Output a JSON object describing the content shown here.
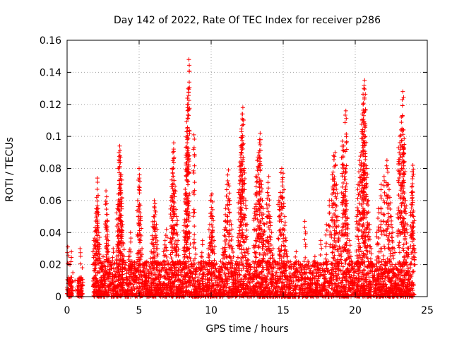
{
  "chart_data": {
    "type": "scatter",
    "title": "Day 142 of 2022, Rate Of TEC Index for receiver p286",
    "xlabel": "GPS time / hours",
    "ylabel": "ROTI / TECUs",
    "xlim": [
      0,
      25
    ],
    "ylim": [
      0,
      0.16
    ],
    "xticks": [
      0,
      5,
      10,
      15,
      20,
      25
    ],
    "yticks": [
      0,
      0.02,
      0.04,
      0.06,
      0.08,
      0.1,
      0.12,
      0.14,
      0.16
    ],
    "xtick_labels": [
      "0",
      "5",
      "10",
      "15",
      "20",
      "25"
    ],
    "ytick_labels": [
      "0",
      "0.02",
      "0.04",
      "0.06",
      "0.08",
      "0.1",
      "0.12",
      "0.14",
      "0.16"
    ],
    "grid": true,
    "marker": "+",
    "color": "#ff0000",
    "series": [
      {
        "points": [
          [
            0.05,
            0.031
          ],
          [
            0.1,
            0.012
          ],
          [
            0.15,
            0.008
          ],
          [
            0.2,
            0.02
          ],
          [
            0.25,
            0.005
          ],
          [
            0.3,
            0.028
          ],
          [
            0.35,
            0.009
          ],
          [
            0.4,
            0.015
          ],
          [
            0.55,
            0.01
          ],
          [
            0.6,
            0.004
          ],
          [
            0.8,
            0.007
          ],
          [
            0.9,
            0.03
          ],
          [
            0.95,
            0.012
          ],
          [
            1.0,
            0.005
          ],
          [
            1.05,
            0.018
          ],
          [
            1.1,
            0.009
          ],
          [
            1.8,
            0.028
          ],
          [
            1.85,
            0.035
          ],
          [
            1.9,
            0.02
          ],
          [
            1.95,
            0.043
          ],
          [
            2.0,
            0.052
          ],
          [
            2.05,
            0.062
          ],
          [
            2.1,
            0.074
          ],
          [
            2.15,
            0.055
          ],
          [
            2.2,
            0.04
          ],
          [
            2.25,
            0.03
          ],
          [
            2.3,
            0.018
          ],
          [
            2.35,
            0.012
          ],
          [
            2.4,
            0.008
          ],
          [
            2.45,
            0.004
          ],
          [
            2.5,
            0.025
          ],
          [
            2.6,
            0.015
          ],
          [
            2.7,
            0.066
          ],
          [
            2.75,
            0.058
          ],
          [
            2.8,
            0.047
          ],
          [
            2.85,
            0.035
          ],
          [
            2.9,
            0.024
          ],
          [
            2.95,
            0.014
          ],
          [
            3.0,
            0.008
          ],
          [
            3.1,
            0.021
          ],
          [
            3.2,
            0.03
          ],
          [
            3.3,
            0.012
          ],
          [
            3.4,
            0.006
          ],
          [
            3.5,
            0.055
          ],
          [
            3.55,
            0.064
          ],
          [
            3.6,
            0.09
          ],
          [
            3.65,
            0.094
          ],
          [
            3.7,
            0.087
          ],
          [
            3.75,
            0.076
          ],
          [
            3.8,
            0.058
          ],
          [
            3.85,
            0.045
          ],
          [
            3.9,
            0.033
          ],
          [
            3.95,
            0.025
          ],
          [
            4.0,
            0.018
          ],
          [
            4.1,
            0.012
          ],
          [
            4.2,
            0.007
          ],
          [
            4.3,
            0.028
          ],
          [
            4.4,
            0.04
          ],
          [
            4.5,
            0.022
          ],
          [
            4.6,
            0.015
          ],
          [
            4.7,
            0.009
          ],
          [
            4.8,
            0.005
          ],
          [
            4.9,
            0.06
          ],
          [
            5.0,
            0.08
          ],
          [
            5.05,
            0.072
          ],
          [
            5.1,
            0.05
          ],
          [
            5.2,
            0.03
          ],
          [
            5.3,
            0.02
          ],
          [
            5.4,
            0.012
          ],
          [
            5.5,
            0.007
          ],
          [
            5.6,
            0.004
          ],
          [
            5.7,
            0.015
          ],
          [
            5.8,
            0.024
          ],
          [
            5.9,
            0.038
          ],
          [
            6.0,
            0.05
          ],
          [
            6.05,
            0.06
          ],
          [
            6.1,
            0.058
          ],
          [
            6.2,
            0.045
          ],
          [
            6.3,
            0.03
          ],
          [
            6.4,
            0.02
          ],
          [
            6.5,
            0.012
          ],
          [
            6.6,
            0.007
          ],
          [
            6.7,
            0.028
          ],
          [
            6.8,
            0.035
          ],
          [
            6.9,
            0.042
          ],
          [
            7.0,
            0.02
          ],
          [
            7.1,
            0.012
          ],
          [
            7.2,
            0.06
          ],
          [
            7.3,
            0.08
          ],
          [
            7.35,
            0.09
          ],
          [
            7.4,
            0.096
          ],
          [
            7.5,
            0.069
          ],
          [
            7.6,
            0.05
          ],
          [
            7.7,
            0.035
          ],
          [
            7.8,
            0.022
          ],
          [
            7.9,
            0.014
          ],
          [
            8.0,
            0.008
          ],
          [
            8.1,
            0.03
          ],
          [
            8.15,
            0.048
          ],
          [
            8.2,
            0.067
          ],
          [
            8.25,
            0.087
          ],
          [
            8.3,
            0.103
          ],
          [
            8.35,
            0.12
          ],
          [
            8.4,
            0.13
          ],
          [
            8.45,
            0.148
          ],
          [
            8.5,
            0.04
          ],
          [
            8.6,
            0.02
          ],
          [
            8.7,
            0.012
          ],
          [
            8.8,
            0.101
          ],
          [
            8.9,
            0.03
          ],
          [
            9.0,
            0.018
          ],
          [
            9.1,
            0.01
          ],
          [
            9.2,
            0.005
          ],
          [
            9.3,
            0.025
          ],
          [
            9.4,
            0.035
          ],
          [
            9.5,
            0.015
          ],
          [
            9.6,
            0.008
          ],
          [
            9.7,
            0.004
          ],
          [
            9.8,
            0.03
          ],
          [
            9.9,
            0.045
          ],
          [
            10.0,
            0.063
          ],
          [
            10.05,
            0.064
          ],
          [
            10.1,
            0.05
          ],
          [
            10.2,
            0.035
          ],
          [
            10.3,
            0.02
          ],
          [
            10.4,
            0.012
          ],
          [
            10.5,
            0.007
          ],
          [
            10.6,
            0.003
          ],
          [
            10.7,
            0.018
          ],
          [
            10.8,
            0.03
          ],
          [
            10.9,
            0.042
          ],
          [
            11.0,
            0.055
          ],
          [
            11.1,
            0.07
          ],
          [
            11.2,
            0.079
          ],
          [
            11.3,
            0.06
          ],
          [
            11.4,
            0.045
          ],
          [
            11.5,
            0.03
          ],
          [
            11.6,
            0.018
          ],
          [
            11.7,
            0.01
          ],
          [
            11.8,
            0.005
          ],
          [
            11.9,
            0.065
          ],
          [
            12.0,
            0.084
          ],
          [
            12.05,
            0.094
          ],
          [
            12.1,
            0.103
          ],
          [
            12.15,
            0.114
          ],
          [
            12.2,
            0.118
          ],
          [
            12.3,
            0.08
          ],
          [
            12.4,
            0.06
          ],
          [
            12.5,
            0.045
          ],
          [
            12.6,
            0.03
          ],
          [
            12.7,
            0.02
          ],
          [
            12.8,
            0.012
          ],
          [
            12.9,
            0.006
          ],
          [
            13.0,
            0.055
          ],
          [
            13.1,
            0.075
          ],
          [
            13.2,
            0.085
          ],
          [
            13.3,
            0.09
          ],
          [
            13.35,
            0.098
          ],
          [
            13.4,
            0.102
          ],
          [
            13.5,
            0.07
          ],
          [
            13.6,
            0.055
          ],
          [
            13.7,
            0.045
          ],
          [
            13.8,
            0.035
          ],
          [
            13.9,
            0.065
          ],
          [
            14.0,
            0.075
          ],
          [
            14.1,
            0.05
          ],
          [
            14.2,
            0.04
          ],
          [
            14.3,
            0.03
          ],
          [
            14.4,
            0.022
          ],
          [
            14.5,
            0.015
          ],
          [
            14.6,
            0.01
          ],
          [
            14.7,
            0.06
          ],
          [
            14.8,
            0.065
          ],
          [
            14.9,
            0.08
          ],
          [
            15.0,
            0.077
          ],
          [
            15.1,
            0.05
          ],
          [
            15.2,
            0.035
          ],
          [
            15.3,
            0.025
          ],
          [
            15.4,
            0.018
          ],
          [
            15.5,
            0.012
          ],
          [
            15.6,
            0.008
          ],
          [
            15.7,
            0.004
          ],
          [
            15.8,
            0.02
          ],
          [
            15.9,
            0.028
          ],
          [
            16.0,
            0.015
          ],
          [
            16.1,
            0.01
          ],
          [
            16.2,
            0.005
          ],
          [
            16.5,
            0.047
          ],
          [
            16.6,
            0.02
          ],
          [
            16.7,
            0.012
          ],
          [
            16.8,
            0.006
          ],
          [
            16.9,
            0.003
          ],
          [
            17.0,
            0.015
          ],
          [
            17.2,
            0.025
          ],
          [
            17.4,
            0.01
          ],
          [
            17.6,
            0.035
          ],
          [
            17.8,
            0.02
          ],
          [
            18.0,
            0.045
          ],
          [
            18.2,
            0.06
          ],
          [
            18.4,
            0.076
          ],
          [
            18.5,
            0.088
          ],
          [
            18.6,
            0.09
          ],
          [
            18.7,
            0.07
          ],
          [
            18.8,
            0.05
          ],
          [
            18.9,
            0.04
          ],
          [
            19.0,
            0.03
          ],
          [
            19.1,
            0.097
          ],
          [
            19.2,
            0.094
          ],
          [
            19.3,
            0.08
          ],
          [
            19.35,
            0.116
          ],
          [
            19.4,
            0.06
          ],
          [
            19.5,
            0.045
          ],
          [
            19.6,
            0.035
          ],
          [
            19.7,
            0.025
          ],
          [
            19.8,
            0.018
          ],
          [
            19.9,
            0.012
          ],
          [
            20.0,
            0.008
          ],
          [
            20.1,
            0.05
          ],
          [
            20.2,
            0.07
          ],
          [
            20.3,
            0.085
          ],
          [
            20.4,
            0.09
          ],
          [
            20.5,
            0.114
          ],
          [
            20.55,
            0.12
          ],
          [
            20.6,
            0.13
          ],
          [
            20.65,
            0.135
          ],
          [
            20.7,
            0.1
          ],
          [
            20.8,
            0.08
          ],
          [
            20.9,
            0.06
          ],
          [
            21.0,
            0.045
          ],
          [
            21.1,
            0.03
          ],
          [
            21.2,
            0.02
          ],
          [
            21.3,
            0.012
          ],
          [
            21.4,
            0.007
          ],
          [
            21.5,
            0.04
          ],
          [
            21.6,
            0.055
          ],
          [
            21.8,
            0.07
          ],
          [
            22.0,
            0.075
          ],
          [
            22.2,
            0.085
          ],
          [
            22.3,
            0.07
          ],
          [
            22.4,
            0.062
          ],
          [
            22.5,
            0.05
          ],
          [
            22.6,
            0.04
          ],
          [
            22.7,
            0.03
          ],
          [
            22.8,
            0.02
          ],
          [
            22.9,
            0.012
          ],
          [
            23.0,
            0.093
          ],
          [
            23.1,
            0.1
          ],
          [
            23.2,
            0.112
          ],
          [
            23.3,
            0.128
          ],
          [
            23.35,
            0.104
          ],
          [
            23.4,
            0.095
          ],
          [
            23.5,
            0.06
          ],
          [
            23.6,
            0.045
          ],
          [
            23.7,
            0.03
          ],
          [
            23.8,
            0.02
          ],
          [
            23.9,
            0.065
          ],
          [
            23.95,
            0.078
          ],
          [
            24.0,
            0.082
          ],
          [
            24.05,
            0.05
          ],
          [
            24.1,
            0.03
          ]
        ],
        "band": [
          [
            0.0,
            0.4,
            0.0,
            0.012
          ],
          [
            0.7,
            1.1,
            0.0,
            0.012
          ],
          [
            1.8,
            24.1,
            0.0,
            0.022
          ]
        ]
      }
    ]
  }
}
